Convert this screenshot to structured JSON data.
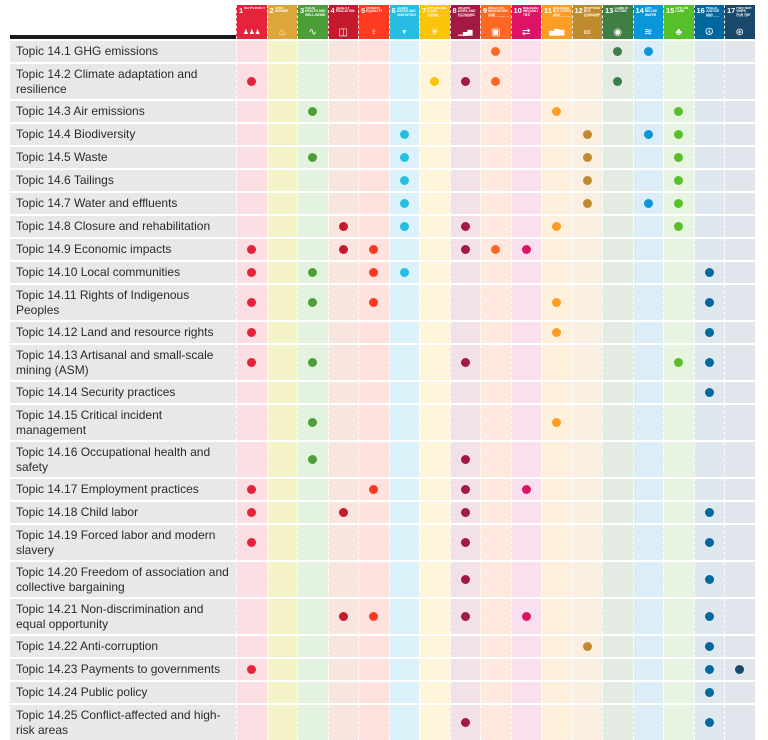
{
  "chart_data": {
    "type": "table",
    "layout": "dot-matrix: mining sector topics (rows) vs Sustainable Development Goals (columns); a dot in a cell uses the column SDG color",
    "columns": [
      {
        "num": 1,
        "name": "No poverty",
        "color": "#E5243B",
        "tint": "#FBDEE2",
        "icon": "people-icon",
        "glyph": "♟♟♟",
        "glyph_small": true
      },
      {
        "num": 2,
        "name": "Zero hunger",
        "color": "#DDA63A",
        "tint": "#F5F3C8",
        "icon": "steaming-bowl-icon",
        "glyph": "♨",
        "glyph_small": false
      },
      {
        "num": 3,
        "name": "Good health and well-being",
        "color": "#4C9F38",
        "tint": "#E4F2E0",
        "icon": "heartbeat-icon",
        "glyph": "∿",
        "glyph_small": false
      },
      {
        "num": 4,
        "name": "Quality education",
        "color": "#C5192D",
        "tint": "#F9E5E0",
        "icon": "open-book-icon",
        "glyph": "◫",
        "glyph_small": false
      },
      {
        "num": 5,
        "name": "Gender equality",
        "color": "#FF3A21",
        "tint": "#FFE2DE",
        "icon": "gender-icon",
        "glyph": "♀",
        "glyph_small": false
      },
      {
        "num": 6,
        "name": "Clean water and sanitation",
        "color": "#26BDE2",
        "tint": "#DCF2FA",
        "icon": "water-drop-icon",
        "glyph": "▼",
        "glyph_small": true
      },
      {
        "num": 7,
        "name": "Affordable and clean energy",
        "color": "#FCC30B",
        "tint": "#FFF5DA",
        "icon": "sun-icon",
        "glyph": "☀",
        "glyph_small": false
      },
      {
        "num": 8,
        "name": "Decent work and economic growth",
        "color": "#A21942",
        "tint": "#F2E1E6",
        "icon": "growth-chart-icon",
        "glyph": "▁▄▆",
        "glyph_small": true
      },
      {
        "num": 9,
        "name": "Industry, innovation and infrastructure",
        "color": "#FD6925",
        "tint": "#FFE8DE",
        "icon": "blocks-icon",
        "glyph": "▣",
        "glyph_small": false
      },
      {
        "num": 10,
        "name": "Reduced inequalities",
        "color": "#DD1367",
        "tint": "#FAE0EE",
        "icon": "equality-icon",
        "glyph": "⇄",
        "glyph_small": false
      },
      {
        "num": 11,
        "name": "Sustainable cities and communities",
        "color": "#FD9D24",
        "tint": "#FFF0DE",
        "icon": "city-skyline-icon",
        "glyph": "▅▇▆",
        "glyph_small": true
      },
      {
        "num": 12,
        "name": "Responsible consumption and production",
        "color": "#BF8B2E",
        "tint": "#F9EEDF",
        "icon": "infinity-icon",
        "glyph": "∞",
        "glyph_small": false
      },
      {
        "num": 13,
        "name": "Climate action",
        "color": "#3F7E44",
        "tint": "#E3EBE3",
        "icon": "eye-globe-icon",
        "glyph": "◉",
        "glyph_small": false
      },
      {
        "num": 14,
        "name": "Life below water",
        "color": "#0A97D9",
        "tint": "#DCEDF7",
        "icon": "fish-waves-icon",
        "glyph": "≋",
        "glyph_small": false
      },
      {
        "num": 15,
        "name": "Life on land",
        "color": "#56C02B",
        "tint": "#E6F4E1",
        "icon": "tree-icon",
        "glyph": "♣",
        "glyph_small": false
      },
      {
        "num": 16,
        "name": "Peace, justice and strong institutions",
        "color": "#00689D",
        "tint": "#DFE8EF",
        "icon": "dove-icon",
        "glyph": "☮",
        "glyph_small": false
      },
      {
        "num": 17,
        "name": "Partnerships for the goals",
        "color": "#19486A",
        "tint": "#E0E6EC",
        "icon": "rings-icon",
        "glyph": "⊛",
        "glyph_small": false
      }
    ],
    "rows": [
      {
        "label": "Topic 14.1 GHG emissions",
        "sdgs": [
          9,
          13,
          14
        ]
      },
      {
        "label": "Topic 14.2 Climate adaptation and resilience",
        "sdgs": [
          1,
          7,
          8,
          9,
          13
        ]
      },
      {
        "label": "Topic 14.3 Air emissions",
        "sdgs": [
          3,
          11,
          15
        ]
      },
      {
        "label": "Topic 14.4 Biodiversity",
        "sdgs": [
          6,
          12,
          14,
          15
        ]
      },
      {
        "label": "Topic 14.5 Waste",
        "sdgs": [
          3,
          6,
          12,
          15
        ]
      },
      {
        "label": "Topic 14.6 Tailings",
        "sdgs": [
          6,
          12,
          15
        ]
      },
      {
        "label": "Topic 14.7 Water and effluents",
        "sdgs": [
          6,
          12,
          14,
          15
        ]
      },
      {
        "label": "Topic 14.8 Closure and rehabilitation",
        "sdgs": [
          4,
          6,
          8,
          11,
          15
        ]
      },
      {
        "label": "Topic 14.9 Economic impacts",
        "sdgs": [
          1,
          4,
          5,
          8,
          9,
          10
        ]
      },
      {
        "label": "Topic 14.10 Local communities",
        "sdgs": [
          1,
          3,
          5,
          6,
          16
        ]
      },
      {
        "label": "Topic 14.11 Rights of Indigenous Peoples",
        "sdgs": [
          1,
          3,
          5,
          11,
          16
        ]
      },
      {
        "label": "Topic 14.12 Land and resource rights",
        "sdgs": [
          1,
          11,
          16
        ]
      },
      {
        "label": "Topic 14.13 Artisanal and small-scale mining (ASM)",
        "sdgs": [
          1,
          3,
          8,
          15,
          16
        ]
      },
      {
        "label": "Topic 14.14 Security practices",
        "sdgs": [
          16
        ]
      },
      {
        "label": "Topic 14.15 Critical incident management",
        "sdgs": [
          3,
          11
        ]
      },
      {
        "label": "Topic 14.16 Occupational health and safety",
        "sdgs": [
          3,
          8
        ]
      },
      {
        "label": "Topic 14.17 Employment practices",
        "sdgs": [
          1,
          5,
          8,
          10
        ]
      },
      {
        "label": "Topic 14.18 Child labor",
        "sdgs": [
          1,
          4,
          8,
          16
        ]
      },
      {
        "label": "Topic 14.19 Forced labor and modern slavery",
        "sdgs": [
          1,
          8,
          16
        ]
      },
      {
        "label": "Topic 14.20 Freedom of association and collective bargaining",
        "sdgs": [
          8,
          16
        ]
      },
      {
        "label": "Topic 14.21 Non-discrimination and equal opportunity",
        "sdgs": [
          4,
          5,
          8,
          10,
          16
        ]
      },
      {
        "label": "Topic 14.22 Anti-corruption",
        "sdgs": [
          12,
          16
        ]
      },
      {
        "label": "Topic 14.23 Payments to governments",
        "sdgs": [
          1,
          16,
          17
        ]
      },
      {
        "label": "Topic 14.24 Public policy",
        "sdgs": [
          16
        ]
      },
      {
        "label": "Topic 14.25 Conflict-affected and high-risk areas",
        "sdgs": [
          8,
          16
        ]
      }
    ]
  }
}
